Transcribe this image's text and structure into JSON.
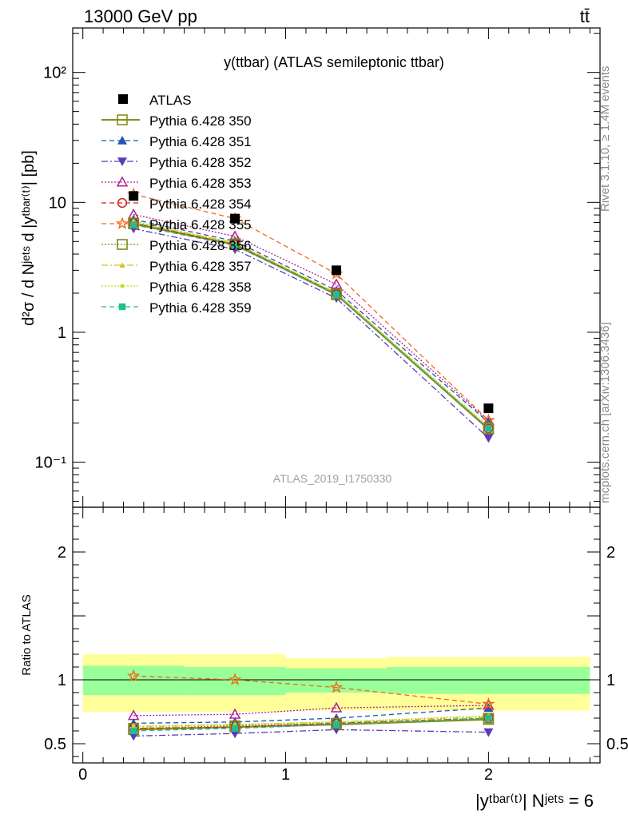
{
  "header": {
    "left": "13000 GeV pp",
    "right": "tt̄"
  },
  "title": "y(ttbar) (ATLAS semileptonic ttbar)",
  "watermark": "ATLAS_2019_I1750330",
  "side_text": {
    "rivet": "Rivet 3.1.10, ≥ 1.4M events",
    "mcplots": "mcplots.cern.ch [arXiv:1306.3436]"
  },
  "axes": {
    "ylabel_top": "d²σ / d Nʲᵉᵗˢ d |yᵗᵇᵃʳ⁽ᵗ⁾| [pb]",
    "ylabel_bottom": "Ratio to ATLAS",
    "xlabel": "|yᵗᵇᵃʳ⁽ᵗ⁾| Nʲᵉᵗˢ = 6"
  },
  "chart_data": {
    "type": "line",
    "x_edges": [
      0,
      0.5,
      1.0,
      1.5,
      2.5
    ],
    "x": [
      0.25,
      0.75,
      1.25,
      2.0
    ],
    "xlim": [
      -0.05,
      2.55
    ],
    "ylim_top": [
      0.045,
      220
    ],
    "yscale_top": "log",
    "ylim_ratio": [
      0.35,
      2.35
    ],
    "x_ticks": [
      "0",
      "1",
      "2"
    ],
    "y_ticks_top": [
      "10⁻¹",
      "1",
      "10",
      "10²"
    ],
    "y_ticks_ratio": [
      "0.5",
      "1",
      "2"
    ],
    "legend_placement": "top-left",
    "data": {
      "name": "ATLAS",
      "values": [
        11.2,
        7.5,
        3.0,
        0.26
      ]
    },
    "bands": {
      "inner_low": [
        0.88,
        0.88,
        0.9,
        0.89
      ],
      "inner_high": [
        1.11,
        1.1,
        1.09,
        1.1
      ],
      "outer_low": [
        0.75,
        0.75,
        0.76,
        0.76
      ],
      "outer_high": [
        1.2,
        1.2,
        1.17,
        1.18
      ]
    },
    "series": [
      {
        "name": "Pythia 6.428 350",
        "color": "#8c8c1e",
        "dash": "",
        "marker": "square-open",
        "ratio": [
          0.61,
          0.63,
          0.65,
          0.69
        ]
      },
      {
        "name": "Pythia 6.428 351",
        "color": "#1f56b5",
        "dash": "6,4",
        "marker": "triangle-up",
        "ratio": [
          0.66,
          0.67,
          0.7,
          0.78
        ]
      },
      {
        "name": "Pythia 6.428 352",
        "color": "#5b3bb7",
        "dash": "8,3,2,3",
        "marker": "triangle-down",
        "ratio": [
          0.56,
          0.58,
          0.61,
          0.59
        ]
      },
      {
        "name": "Pythia 6.428 353",
        "color": "#b0208f",
        "dash": "2,2",
        "marker": "triangle-open",
        "ratio": [
          0.72,
          0.73,
          0.78,
          0.8
        ]
      },
      {
        "name": "Pythia 6.428 354",
        "color": "#d42020",
        "dash": "6,4",
        "marker": "circle-open",
        "ratio": [
          0.62,
          0.63,
          0.66,
          0.7
        ]
      },
      {
        "name": "Pythia 6.428 355",
        "color": "#f06a1a",
        "dash": "6,4",
        "marker": "star-open",
        "ratio": [
          1.03,
          1.0,
          0.94,
          0.81
        ]
      },
      {
        "name": "Pythia 6.428 356",
        "color": "#7a8c1e",
        "dash": "2,2",
        "marker": "square-open",
        "ratio": [
          0.62,
          0.64,
          0.66,
          0.7
        ]
      },
      {
        "name": "Pythia 6.428 357",
        "color": "#d8c020",
        "dash": "8,3,2,3",
        "marker": "tri-small",
        "ratio": [
          0.63,
          0.65,
          0.67,
          0.71
        ]
      },
      {
        "name": "Pythia 6.428 358",
        "color": "#c8d820",
        "dash": "2,2",
        "marker": "dot",
        "ratio": [
          0.64,
          0.65,
          0.67,
          0.72
        ]
      },
      {
        "name": "Pythia 6.428 359",
        "color": "#1fbf8f",
        "dash": "6,4",
        "marker": "square-filled",
        "ratio": [
          0.6,
          0.62,
          0.65,
          0.7
        ]
      }
    ]
  }
}
